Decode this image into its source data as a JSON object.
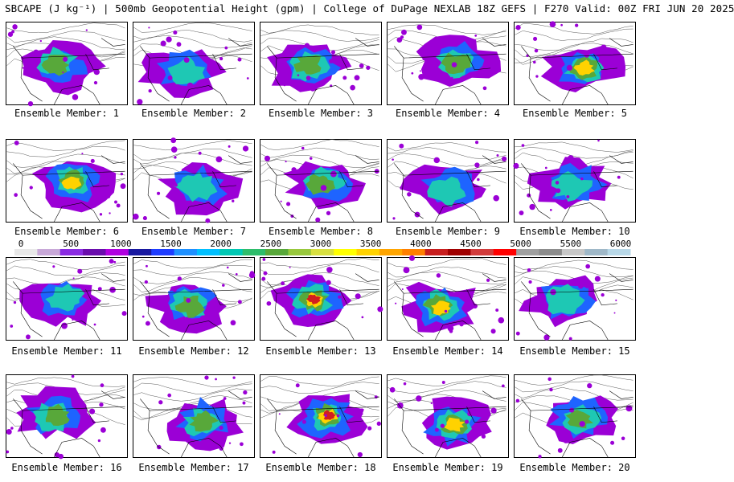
{
  "header": {
    "title": "SBCAPE (J kg⁻¹) | 500mb Geopotential Height (gpm) | College of DuPage NEXLAB 18Z GEFS | F270 Valid: 00Z FRI JUN 20 2025"
  },
  "panels": [
    {
      "label": "Ensemble Member: 1",
      "intensity": 2
    },
    {
      "label": "Ensemble Member: 2",
      "intensity": 1
    },
    {
      "label": "Ensemble Member: 3",
      "intensity": 2
    },
    {
      "label": "Ensemble Member: 4",
      "intensity": 2
    },
    {
      "label": "Ensemble Member: 5",
      "intensity": 3
    },
    {
      "label": "Ensemble Member: 6",
      "intensity": 3
    },
    {
      "label": "Ensemble Member: 7",
      "intensity": 1
    },
    {
      "label": "Ensemble Member: 8",
      "intensity": 2
    },
    {
      "label": "Ensemble Member: 9",
      "intensity": 1
    },
    {
      "label": "Ensemble Member: 10",
      "intensity": 1
    },
    {
      "label": "Ensemble Member: 11",
      "intensity": 1
    },
    {
      "label": "Ensemble Member: 12",
      "intensity": 2
    },
    {
      "label": "Ensemble Member: 13",
      "intensity": 4
    },
    {
      "label": "Ensemble Member: 14",
      "intensity": 3
    },
    {
      "label": "Ensemble Member: 15",
      "intensity": 1
    },
    {
      "label": "Ensemble Member: 16",
      "intensity": 2
    },
    {
      "label": "Ensemble Member: 17",
      "intensity": 2
    },
    {
      "label": "Ensemble Member: 18",
      "intensity": 4
    },
    {
      "label": "Ensemble Member: 19",
      "intensity": 3
    },
    {
      "label": "Ensemble Member: 20",
      "intensity": 2
    }
  ],
  "colorbar": {
    "ticks": [
      "0",
      "500",
      "1000",
      "1500",
      "2000",
      "2500",
      "3000",
      "3500",
      "4000",
      "4500",
      "5000",
      "5500",
      "6000"
    ],
    "colors": [
      "#e8e8e8",
      "#c8a8d8",
      "#8a2be2",
      "#6a0dad",
      "#b000e0",
      "#1818a0",
      "#1e3cff",
      "#1e90ff",
      "#00bfff",
      "#00c8b4",
      "#2ebd6b",
      "#58a83a",
      "#98c83c",
      "#d8e040",
      "#ffff00",
      "#ffd200",
      "#ffa500",
      "#ff7f00",
      "#c81e1e",
      "#a00000",
      "#d23c3c",
      "#ff0000",
      "#a0a0a0",
      "#8c8c8c",
      "#c8c8c8",
      "#9fb8c8",
      "#b8d8e8"
    ]
  }
}
